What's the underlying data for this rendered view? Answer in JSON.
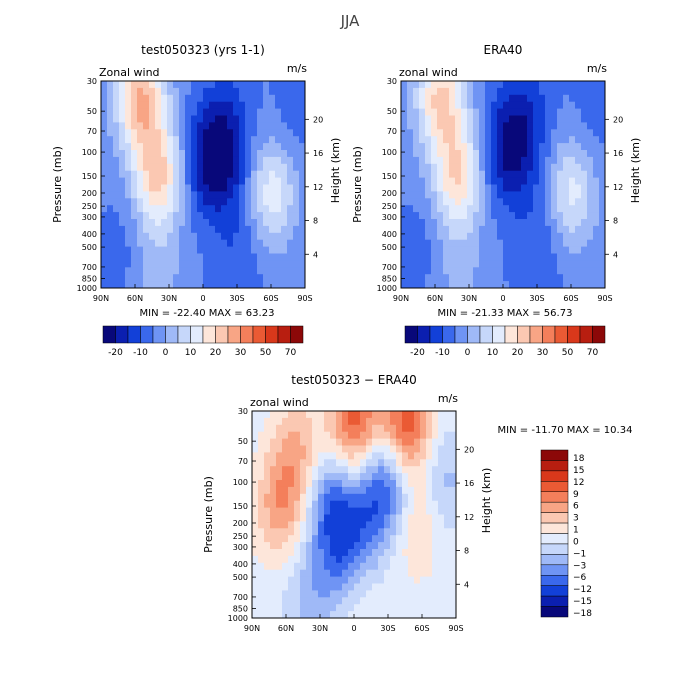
{
  "figure": {
    "title": "JJA"
  },
  "colors": {
    "full_scale": [
      "#08087a",
      "#0b1fb0",
      "#1240d8",
      "#3a68ec",
      "#6f94f4",
      "#9fb9f7",
      "#c6d7fa",
      "#e3ecfd",
      "#fde6da",
      "#fbc8b2",
      "#f8a585",
      "#f47f5b",
      "#ea5a34",
      "#d9381b",
      "#b81e10",
      "#8c0808"
    ],
    "diff_scale": [
      "#08087a",
      "#0b1fb0",
      "#1240d8",
      "#3a68ec",
      "#6f94f4",
      "#9fb9f7",
      "#c6d7fa",
      "#e3ecfd",
      "#fde6da",
      "#fbc8b2",
      "#f8a585",
      "#f47f5b",
      "#ea5a34",
      "#d9381b",
      "#b81e10",
      "#8c0808"
    ]
  },
  "chart_data": [
    {
      "type": "heatmap",
      "title": "test050323 (yrs 1-1)",
      "variable": "Zonal wind",
      "units": "m/s",
      "ylabel": "Pressure (mb)",
      "ylabel_right": "Height (km)",
      "x_ticks": [
        "90N",
        "60N",
        "30N",
        "0",
        "30S",
        "60S",
        "90S"
      ],
      "y_ticks": [
        "30",
        "50",
        "70",
        "100",
        "150",
        "200",
        "250",
        "300",
        "400",
        "500",
        "700",
        "850",
        "1000"
      ],
      "y_ticks_right": [
        "20",
        "16",
        "12",
        "8",
        "4"
      ],
      "min_label": "MIN = -22.40",
      "max_label": "MAX =  63.23",
      "colorbar_labels": [
        "-20",
        "-10",
        "0",
        "10",
        "20",
        "30",
        "50",
        "70"
      ],
      "blobs": [
        {
          "lat": -8,
          "p": 120,
          "amp": -22
        },
        {
          "lat": -20,
          "p": 60,
          "amp": -10
        },
        {
          "lat": -35,
          "p": 200,
          "amp": -6
        },
        {
          "lat": -30,
          "p": 700,
          "amp": -6
        },
        {
          "lat": 40,
          "p": 150,
          "amp": 30
        },
        {
          "lat": 55,
          "p": 40,
          "amp": 35
        },
        {
          "lat": 40,
          "p": 700,
          "amp": 8
        },
        {
          "lat": 70,
          "p": 500,
          "amp": -4
        },
        {
          "lat": -60,
          "p": 200,
          "amp": 22
        },
        {
          "lat": -80,
          "p": 60,
          "amp": -4
        }
      ]
    },
    {
      "type": "heatmap",
      "title": "ERA40",
      "variable": "zonal wind",
      "units": "m/s",
      "ylabel": "Pressure (mb)",
      "ylabel_right": "Height (km)",
      "x_ticks": [
        "90N",
        "60N",
        "30N",
        "0",
        "30S",
        "60S",
        "90S"
      ],
      "y_ticks": [
        "30",
        "50",
        "70",
        "100",
        "150",
        "200",
        "250",
        "300",
        "400",
        "500",
        "700",
        "850",
        "1000"
      ],
      "y_ticks_right": [
        "20",
        "16",
        "12",
        "8",
        "4"
      ],
      "min_label": "MIN = -21.33",
      "max_label": "MAX =  56.73",
      "colorbar_labels": [
        "-20",
        "-10",
        "0",
        "10",
        "20",
        "30",
        "50",
        "70"
      ],
      "blobs": [
        {
          "lat": -5,
          "p": 100,
          "amp": -20
        },
        {
          "lat": -20,
          "p": 50,
          "amp": -10
        },
        {
          "lat": -35,
          "p": 250,
          "amp": -5
        },
        {
          "lat": -30,
          "p": 700,
          "amp": -5
        },
        {
          "lat": 40,
          "p": 150,
          "amp": 28
        },
        {
          "lat": 55,
          "p": 40,
          "amp": 30
        },
        {
          "lat": 40,
          "p": 700,
          "amp": 7
        },
        {
          "lat": 70,
          "p": 500,
          "amp": -4
        },
        {
          "lat": -60,
          "p": 200,
          "amp": 20
        },
        {
          "lat": -80,
          "p": 60,
          "amp": -4
        }
      ]
    },
    {
      "type": "heatmap",
      "title": "test050323 − ERA40",
      "variable": "zonal wind",
      "units": "m/s",
      "ylabel": "Pressure (mb)",
      "ylabel_right": "Height (km)",
      "x_ticks": [
        "90N",
        "60N",
        "30N",
        "0",
        "30S",
        "60S",
        "90S"
      ],
      "y_ticks": [
        "30",
        "50",
        "70",
        "100",
        "150",
        "200",
        "250",
        "300",
        "400",
        "500",
        "700",
        "850",
        "1000"
      ],
      "y_ticks_right": [
        "20",
        "16",
        "12",
        "8",
        "4"
      ],
      "min_label": "MIN = -11.70",
      "max_label": "MAX =  10.34",
      "colorbar_labels": [
        "18",
        "15",
        "12",
        "9",
        "6",
        "3",
        "1",
        "0",
        "−1",
        "−3",
        "−6",
        "−12",
        "−15",
        "−18"
      ],
      "blobs": [
        {
          "lat": 65,
          "p": 150,
          "amp": 5
        },
        {
          "lat": 50,
          "p": 60,
          "amp": 4
        },
        {
          "lat": 20,
          "p": 150,
          "amp": -6
        },
        {
          "lat": 10,
          "p": 400,
          "amp": -5
        },
        {
          "lat": 0,
          "p": 35,
          "amp": 8
        },
        {
          "lat": -10,
          "p": 200,
          "amp": -4
        },
        {
          "lat": -30,
          "p": 100,
          "amp": -7
        },
        {
          "lat": -45,
          "p": 40,
          "amp": 9
        },
        {
          "lat": -55,
          "p": 200,
          "amp": 3
        },
        {
          "lat": -80,
          "p": 100,
          "amp": -3
        },
        {
          "lat": 0,
          "p": 700,
          "amp": 2
        },
        {
          "lat": 40,
          "p": 700,
          "amp": -3
        }
      ]
    }
  ]
}
